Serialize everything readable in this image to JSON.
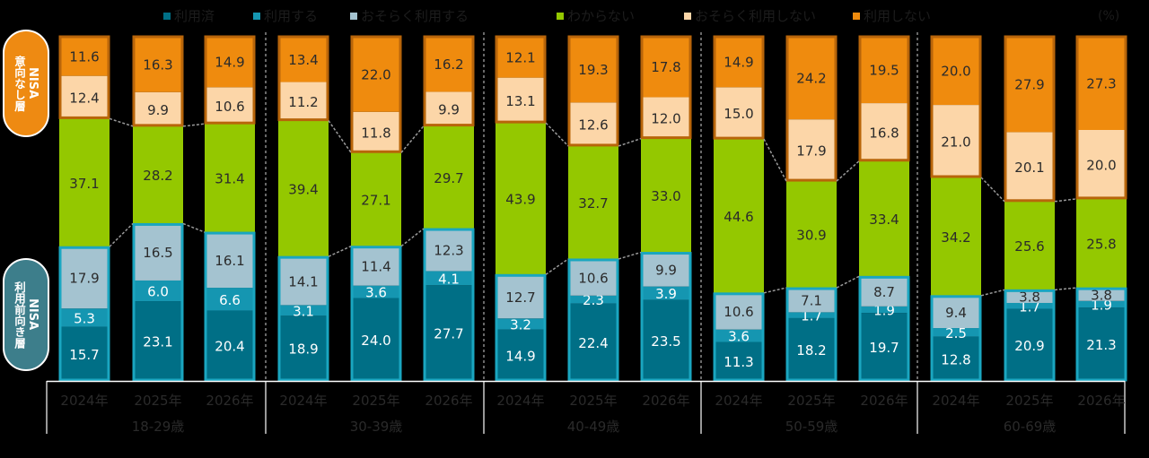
{
  "chart_data": {
    "type": "bar",
    "stacked": true,
    "orientation": "vertical",
    "title": "",
    "unit_label": "(%)",
    "ylim": [
      0,
      100
    ],
    "grid": false,
    "legend_position": "top",
    "legend": [
      {
        "key": "used",
        "label": "利用済",
        "color": "#006f86"
      },
      {
        "key": "will_use",
        "label": "利用する",
        "color": "#1596b1"
      },
      {
        "key": "maybe_use",
        "label": "おそらく利用する",
        "color": "#a4c3d0"
      },
      {
        "key": "unknown",
        "label": "わからない",
        "color": "#94c800"
      },
      {
        "key": "maybe_not",
        "label": "おそらく利用しない",
        "color": "#fcd6a8"
      },
      {
        "key": "not_use",
        "label": "利用しない",
        "color": "#ef8b0e"
      }
    ],
    "side_labels": {
      "top": {
        "title": "NISA",
        "sub": "意向なし層",
        "color": "#ee8a12"
      },
      "bottom": {
        "title": "NISA",
        "sub": "利用前向き層",
        "color": "#3d7e8b"
      }
    },
    "groups": [
      {
        "label": "18-29歳",
        "years": [
          "2024年",
          "2025年",
          "2026年"
        ]
      },
      {
        "label": "30-39歳",
        "years": [
          "2024年",
          "2025年",
          "2026年"
        ]
      },
      {
        "label": "40-49歳",
        "years": [
          "2024年",
          "2025年",
          "2026年"
        ]
      },
      {
        "label": "50-59歳",
        "years": [
          "2024年",
          "2025年",
          "2026年"
        ]
      },
      {
        "label": "60-69歳",
        "years": [
          "2024年",
          "2025年",
          "2026年"
        ]
      }
    ],
    "categories": [
      "18-29歳 2024年",
      "18-29歳 2025年",
      "18-29歳 2026年",
      "30-39歳 2024年",
      "30-39歳 2025年",
      "30-39歳 2026年",
      "40-49歳 2024年",
      "40-49歳 2025年",
      "40-49歳 2026年",
      "50-59歳 2024年",
      "50-59歳 2025年",
      "50-59歳 2026年",
      "60-69歳 2024年",
      "60-69歳 2025年",
      "60-69歳 2026年"
    ],
    "series": [
      {
        "name": "利用済",
        "key": "used",
        "values": [
          15.7,
          23.1,
          20.4,
          18.9,
          24.0,
          27.7,
          14.9,
          22.4,
          23.5,
          11.3,
          18.2,
          19.7,
          12.8,
          20.9,
          21.3
        ]
      },
      {
        "name": "利用する",
        "key": "will_use",
        "values": [
          5.3,
          6.0,
          6.6,
          3.1,
          3.6,
          4.1,
          3.2,
          2.3,
          3.9,
          3.6,
          1.7,
          1.9,
          2.5,
          1.7,
          1.9
        ]
      },
      {
        "name": "おそらく利用する",
        "key": "maybe_use",
        "values": [
          17.9,
          16.5,
          16.1,
          14.1,
          11.4,
          12.3,
          12.7,
          10.6,
          9.9,
          10.6,
          7.1,
          8.7,
          9.4,
          3.8,
          3.8
        ]
      },
      {
        "name": "わからない",
        "key": "unknown",
        "values": [
          37.1,
          28.2,
          31.4,
          39.4,
          27.1,
          29.7,
          43.9,
          32.7,
          33.0,
          44.6,
          30.9,
          33.4,
          34.2,
          25.6,
          25.8
        ]
      },
      {
        "name": "おそらく利用しない",
        "key": "maybe_not",
        "values": [
          12.4,
          9.9,
          10.6,
          11.2,
          11.8,
          9.9,
          13.1,
          12.6,
          12.0,
          15.0,
          17.9,
          16.8,
          21.0,
          20.1,
          20.0
        ]
      },
      {
        "name": "利用しない",
        "key": "not_use",
        "values": [
          11.6,
          16.3,
          14.9,
          13.4,
          22.0,
          16.2,
          12.1,
          19.3,
          17.8,
          14.9,
          24.2,
          19.5,
          20.0,
          27.9,
          27.3
        ]
      }
    ]
  }
}
